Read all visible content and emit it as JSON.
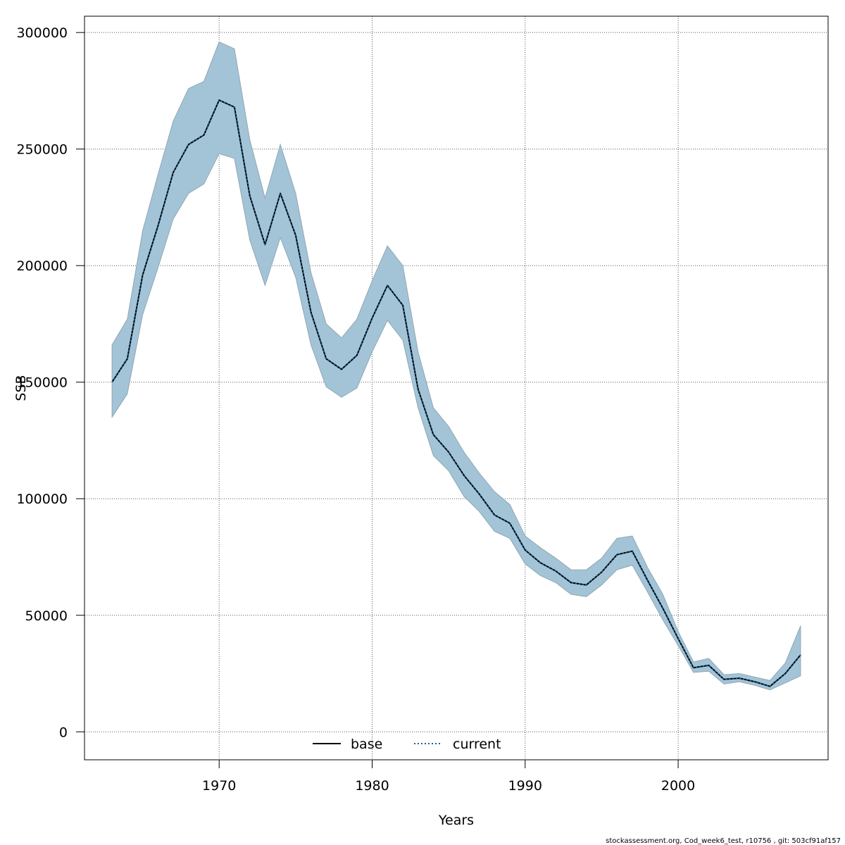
{
  "chart_data": {
    "type": "line",
    "xlabel": "Years",
    "ylabel": "SSB",
    "xlim": [
      1961.2,
      2009.8
    ],
    "ylim": [
      -12000,
      307000
    ],
    "xticks": [
      1970,
      1980,
      1990,
      2000
    ],
    "yticks": [
      0,
      50000,
      100000,
      150000,
      200000,
      250000,
      300000
    ],
    "grid": true,
    "legend_position": "bottom-center",
    "band_color": "#a3c4d6",
    "band_edge_color": "#8fa7b5",
    "x": [
      1963,
      1964,
      1965,
      1966,
      1967,
      1968,
      1969,
      1970,
      1971,
      1972,
      1973,
      1974,
      1975,
      1976,
      1977,
      1978,
      1979,
      1980,
      1981,
      1982,
      1983,
      1984,
      1985,
      1986,
      1987,
      1988,
      1989,
      1990,
      1991,
      1992,
      1993,
      1994,
      1995,
      1996,
      1997,
      1998,
      1999,
      2000,
      2001,
      2002,
      2003,
      2004,
      2005,
      2006,
      2007,
      2008
    ],
    "series": [
      {
        "name": "base",
        "color": "#000000",
        "dash": "solid",
        "values": [
          150000,
          160000,
          196000,
          217000,
          240000,
          252000,
          256000,
          271000,
          268000,
          230000,
          209000,
          231000,
          213000,
          180000,
          160000,
          155500,
          161500,
          177500,
          191500,
          183000,
          147000,
          127500,
          120000,
          110000,
          102000,
          93000,
          89500,
          78000,
          72500,
          69000,
          64000,
          63000,
          68500,
          76000,
          77500,
          65000,
          53000,
          40000,
          27500,
          28500,
          22500,
          23000,
          21500,
          19500,
          25000,
          33000
        ]
      },
      {
        "name": "current",
        "color": "#1f5f99",
        "dash": "dotted",
        "values": [
          150000,
          160000,
          196000,
          217000,
          240000,
          252000,
          256000,
          271000,
          268000,
          230000,
          209000,
          231000,
          213000,
          180000,
          160000,
          155500,
          161500,
          177500,
          191500,
          183000,
          147000,
          127500,
          120000,
          110000,
          102000,
          93000,
          89500,
          78000,
          72500,
          69000,
          64000,
          63000,
          68500,
          76000,
          77500,
          65000,
          53000,
          40000,
          27500,
          28500,
          22500,
          23000,
          21500,
          19500,
          25000,
          33000
        ]
      }
    ],
    "band_upper": [
      166000,
      177000,
      215000,
      239000,
      262000,
      276000,
      279000,
      296000,
      293000,
      254000,
      229000,
      252000,
      231000,
      197000,
      175000,
      169000,
      177000,
      193500,
      208500,
      200000,
      163000,
      139000,
      131000,
      120000,
      111000,
      103000,
      97500,
      84000,
      79000,
      74500,
      69500,
      69500,
      74500,
      83000,
      84000,
      70500,
      59000,
      43000,
      30000,
      31500,
      24500,
      25000,
      23500,
      22000,
      29500,
      45500
    ],
    "band_lower": [
      135000,
      145000,
      179000,
      199000,
      220000,
      231000,
      235000,
      248000,
      246000,
      211000,
      191500,
      212000,
      195000,
      166000,
      148000,
      143500,
      147500,
      163000,
      176500,
      168000,
      139000,
      118500,
      112000,
      101000,
      94500,
      86000,
      83000,
      72000,
      67000,
      64000,
      59000,
      58000,
      63000,
      69500,
      71500,
      60000,
      48000,
      37000,
      25500,
      26000,
      20500,
      21500,
      20000,
      18000,
      21000,
      24000
    ]
  },
  "footer_text": "stockassessment.org, Cod_week6_test, r10756 , git: 503cf91af157"
}
